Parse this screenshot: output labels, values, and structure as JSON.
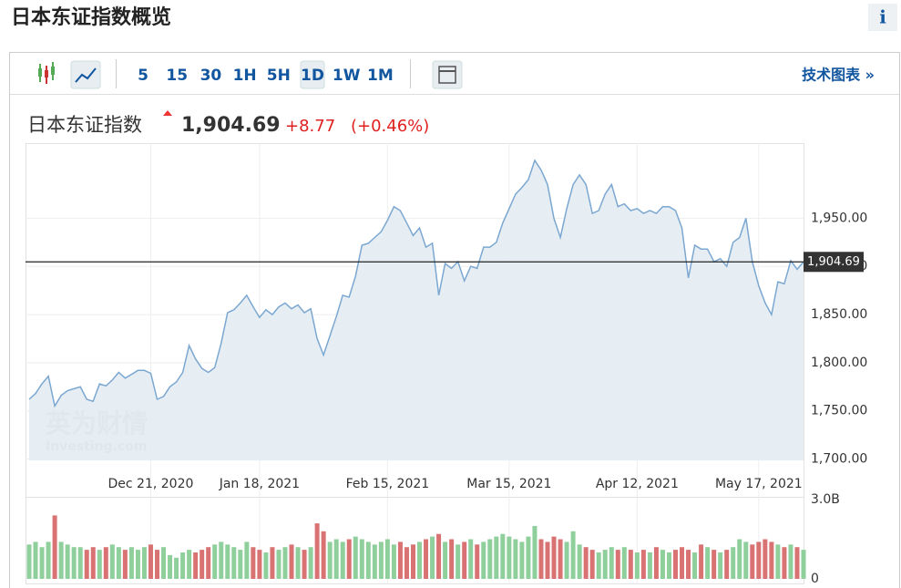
{
  "header": {
    "title": "日本东证指数概览",
    "info": "i"
  },
  "toolbar": {
    "intervals": [
      "5",
      "15",
      "30",
      "1H",
      "5H",
      "1D",
      "1W",
      "1M"
    ],
    "selected": "1D",
    "link": "技术图表 »"
  },
  "quote": {
    "name": "日本东证指数",
    "price": "1,904.69",
    "change": "+8.77",
    "change_pct": "(+0.46%)"
  },
  "chart_data": {
    "type": "line",
    "categories": [
      null,
      null,
      null,
      null,
      null,
      null,
      null,
      null,
      null,
      null,
      null,
      null,
      null,
      null,
      null,
      null,
      null,
      null,
      null,
      "Dec 21, 2020",
      null,
      null,
      null,
      null,
      null,
      null,
      null,
      null,
      null,
      null,
      null,
      null,
      null,
      null,
      null,
      null,
      "Jan 18, 2021",
      null,
      null,
      null,
      null,
      null,
      null,
      null,
      null,
      null,
      null,
      null,
      null,
      null,
      null,
      null,
      null,
      null,
      null,
      null,
      "Feb 15, 2021",
      null,
      null,
      null,
      null,
      null,
      null,
      null,
      null,
      null,
      null,
      null,
      null,
      null,
      null,
      null,
      null,
      null,
      null,
      "Mar 15, 2021",
      null,
      null,
      null,
      null,
      null,
      null,
      null,
      null,
      null,
      null,
      null,
      null,
      null,
      null,
      null,
      null,
      null,
      null,
      null,
      "Apr 12, 2021",
      null,
      null,
      null,
      null,
      null,
      null,
      null,
      null,
      null,
      null,
      null,
      null,
      null,
      null,
      null,
      null,
      null,
      null,
      "May 17, 2021",
      null,
      null,
      null,
      null,
      null,
      null,
      null
    ],
    "values": [
      1762,
      1768,
      1778,
      1786,
      1755,
      1766,
      1771,
      1773,
      1775,
      1762,
      1760,
      1778,
      1776,
      1782,
      1790,
      1784,
      1788,
      1792,
      1792,
      1789,
      1762,
      1765,
      1775,
      1780,
      1790,
      1818,
      1804,
      1794,
      1790,
      1795,
      1820,
      1852,
      1855,
      1862,
      1870,
      1858,
      1847,
      1855,
      1850,
      1858,
      1862,
      1856,
      1860,
      1852,
      1856,
      1825,
      1808,
      1828,
      1848,
      1870,
      1868,
      1890,
      1922,
      1924,
      1930,
      1936,
      1948,
      1962,
      1958,
      1945,
      1932,
      1940,
      1920,
      1924,
      1870,
      1903,
      1898,
      1905,
      1885,
      1900,
      1898,
      1920,
      1920,
      1925,
      1945,
      1960,
      1975,
      1982,
      1990,
      2010,
      2000,
      1985,
      1950,
      1930,
      1960,
      1985,
      1995,
      1985,
      1955,
      1958,
      1975,
      1985,
      1962,
      1965,
      1958,
      1960,
      1955,
      1958,
      1955,
      1962,
      1962,
      1958,
      1940,
      1888,
      1922,
      1918,
      1918,
      1905,
      1908,
      1900,
      1925,
      1930,
      1950,
      1905,
      1880,
      1862,
      1850,
      1884,
      1882,
      1906,
      1897,
      1904.69
    ],
    "color": "#7ba7d1",
    "fill_color": "#e3ecf3",
    "ylim": [
      1692,
      2028
    ],
    "yticks": [
      {
        "value": 1700,
        "label": "1,700.00"
      },
      {
        "value": 1750,
        "label": "1,750.00"
      },
      {
        "value": 1800,
        "label": "1,800.00"
      },
      {
        "value": 1850,
        "label": "1,850.00"
      },
      {
        "value": 1900,
        "label": "1,900.00"
      },
      {
        "value": 1950,
        "label": "1,950.00"
      }
    ],
    "grid": true,
    "last": {
      "value": 1904.69,
      "label": "1,904.69"
    },
    "watermark": [
      "英为财情",
      "Investing.com"
    ],
    "volume": {
      "type": "bar",
      "values": [
        1.3,
        1.4,
        1.2,
        1.4,
        2.4,
        1.4,
        1.3,
        1.2,
        1.2,
        1.1,
        1.2,
        1.1,
        1.2,
        1.3,
        1.2,
        1.1,
        1.2,
        1.1,
        1.2,
        1.3,
        1.1,
        1.2,
        0.9,
        0.8,
        1.0,
        1.1,
        1.0,
        1.1,
        1.2,
        1.3,
        1.4,
        1.3,
        1.2,
        1.1,
        1.4,
        1.2,
        1.1,
        1.0,
        1.2,
        1.1,
        1.2,
        1.3,
        1.2,
        1.1,
        1.2,
        2.1,
        1.8,
        1.4,
        1.5,
        1.4,
        1.5,
        1.6,
        1.5,
        1.4,
        1.3,
        1.4,
        1.5,
        1.3,
        1.4,
        1.2,
        1.3,
        1.4,
        1.5,
        1.6,
        1.7,
        1.4,
        1.5,
        1.3,
        1.4,
        1.5,
        1.3,
        1.4,
        1.5,
        1.6,
        1.7,
        1.6,
        1.5,
        1.4,
        1.6,
        2.0,
        1.5,
        1.4,
        1.6,
        1.5,
        1.4,
        1.8,
        1.3,
        1.2,
        1.1,
        1.0,
        1.1,
        1.2,
        1.1,
        1.2,
        1.1,
        1.0,
        1.1,
        1.0,
        1.2,
        1.1,
        1.0,
        1.1,
        1.2,
        1.1,
        1.0,
        1.3,
        1.2,
        1.1,
        1.0,
        1.1,
        1.2,
        1.5,
        1.4,
        1.3,
        1.4,
        1.5,
        1.4,
        1.3,
        1.2,
        1.3,
        1.2,
        1.1
      ],
      "ylim": [
        0,
        3
      ],
      "yticks": [
        0,
        {
          "value": 3,
          "label": "3.0B"
        }
      ],
      "up_color": "#8fcf9b",
      "down_color": "#d97272"
    }
  }
}
